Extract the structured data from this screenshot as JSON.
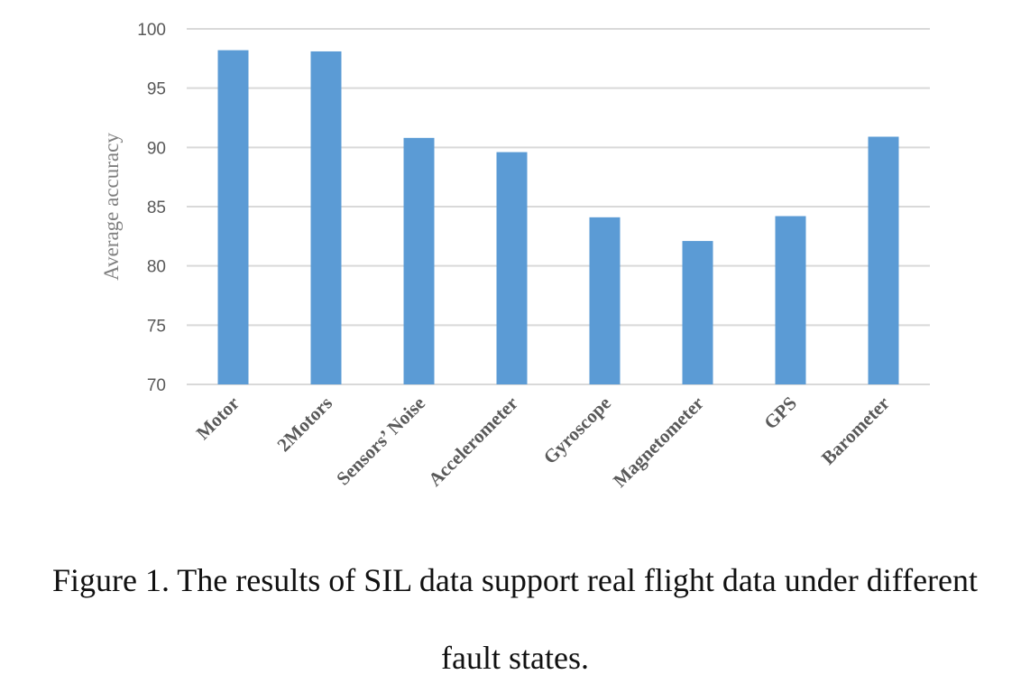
{
  "chart_data": {
    "type": "bar",
    "categories": [
      "Motor",
      "2Motors",
      "Sensors’ Noise",
      "Accelerometer",
      "Gyroscope",
      "Magnetometer",
      "GPS",
      "Barometer"
    ],
    "values": [
      98.2,
      98.1,
      90.8,
      89.6,
      84.1,
      82.1,
      84.2,
      90.9
    ],
    "title": "",
    "xlabel": "",
    "ylabel": "Average accuracy",
    "ylim": [
      70,
      100
    ],
    "yticks": [
      70,
      75,
      80,
      85,
      90,
      95,
      100
    ],
    "grid": true,
    "legend": "none",
    "bar_color": "#5b9bd5",
    "grid_color": "#d9d9d9"
  },
  "caption": {
    "line1": "Figure 1. The results of SIL data support real flight data under different",
    "line2": "fault states."
  }
}
